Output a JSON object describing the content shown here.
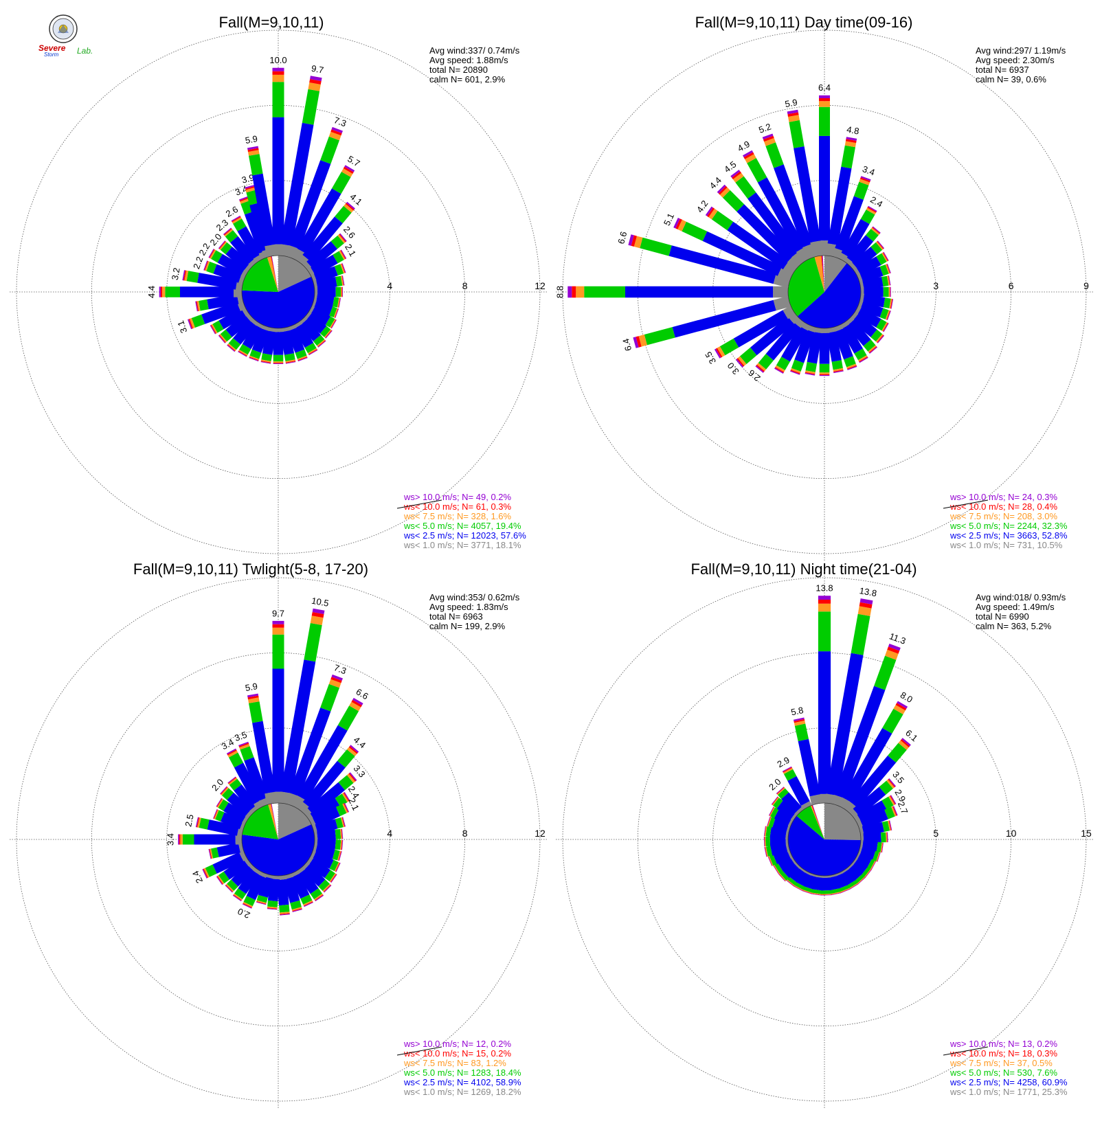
{
  "colors": {
    "gt10": "#9400d3",
    "lt10": "#ff0000",
    "lt7_5": "#ff9922",
    "lt5": "#00cc00",
    "lt2_5": "#0000ee",
    "lt1": "#888888"
  },
  "logo": {
    "text_severe": "Severe",
    "text_storm": "Storm",
    "text_lab": "Lab."
  },
  "chart_data": [
    {
      "type": "polar-bar",
      "title": "Fall(M=9,10,11)",
      "rlim": [
        0,
        12
      ],
      "rticks": [
        "4",
        "8",
        "12"
      ],
      "stats": [
        "Avg wind:337/ 0.74m/s",
        "Avg speed: 1.88m/s",
        "total N=      20890",
        "calm N=    601,   2.9%"
      ],
      "legend": [
        "ws> 10.0 m/s; N=    49,  0.2%",
        "ws< 10.0 m/s; N=    61,  0.3%",
        "ws<  7.5 m/s; N=   328,  1.6%",
        "ws<  5.0 m/s; N=  4057, 19.4%",
        "ws<  2.5 m/s; N= 12023, 57.6%",
        "ws<  1.0 m/s; N=  3771, 18.1%"
      ],
      "pie": {
        "lt1": 18.1,
        "lt2_5": 57.6,
        "lt5": 19.4,
        "lt7_5": 1.6,
        "lt10": 0.3,
        "gt10": 0.2
      },
      "sectors": [
        {
          "d": 0,
          "total": 10.0,
          "label": "10.0"
        },
        {
          "d": 10,
          "total": 9.7,
          "label": "9.7"
        },
        {
          "d": 20,
          "total": 7.3,
          "label": "7.3"
        },
        {
          "d": 30,
          "total": 5.7,
          "label": "5.7"
        },
        {
          "d": 40,
          "total": 4.1,
          "label": "4.1"
        },
        {
          "d": 50,
          "total": 2.6,
          "label": "2.6"
        },
        {
          "d": 60,
          "total": 2.1,
          "label": "2.1"
        },
        {
          "d": 70,
          "total": 1.8
        },
        {
          "d": 80,
          "total": 1.6
        },
        {
          "d": 90,
          "total": 1.5
        },
        {
          "d": 100,
          "total": 1.4
        },
        {
          "d": 110,
          "total": 1.4
        },
        {
          "d": 120,
          "total": 1.5
        },
        {
          "d": 130,
          "total": 1.6
        },
        {
          "d": 140,
          "total": 1.7
        },
        {
          "d": 150,
          "total": 1.8
        },
        {
          "d": 160,
          "total": 1.9
        },
        {
          "d": 170,
          "total": 1.9
        },
        {
          "d": 180,
          "total": 1.9
        },
        {
          "d": 190,
          "total": 1.9
        },
        {
          "d": 200,
          "total": 1.9
        },
        {
          "d": 210,
          "total": 1.9
        },
        {
          "d": 220,
          "total": 2.0
        },
        {
          "d": 230,
          "total": 2.0
        },
        {
          "d": 240,
          "total": 2.1
        },
        {
          "d": 250,
          "total": 3.1,
          "label": "3.1"
        },
        {
          "d": 260,
          "total": 2.5
        },
        {
          "d": 270,
          "total": 4.4,
          "label": "4.4"
        },
        {
          "d": 280,
          "total": 3.2,
          "label": "3.2"
        },
        {
          "d": 290,
          "total": 2.2,
          "label": "2.2"
        },
        {
          "d": 300,
          "total": 2.2,
          "label": "2.2"
        },
        {
          "d": 310,
          "total": 2.0,
          "label": "2.0"
        },
        {
          "d": 320,
          "total": 2.3,
          "label": "2.3"
        },
        {
          "d": 330,
          "total": 2.6,
          "label": "2.6"
        },
        {
          "d": 340,
          "total": 3.4,
          "label": "3.4"
        },
        {
          "d": 345,
          "total": 3.9,
          "label": "3.9"
        },
        {
          "d": 350,
          "total": 5.9,
          "label": "5.9"
        }
      ]
    },
    {
      "type": "polar-bar",
      "title": "Fall(M=9,10,11) Day time(09-16)",
      "rlim": [
        0,
        9
      ],
      "rticks": [
        "3",
        "6",
        "9"
      ],
      "stats": [
        "Avg wind:297/ 1.19m/s",
        "Avg speed: 2.30m/s",
        "total N=       6937",
        "calm N=     39,   0.6%"
      ],
      "legend": [
        "ws> 10.0 m/s; N=    24,  0.3%",
        "ws< 10.0 m/s; N=    28,  0.4%",
        "ws<  7.5 m/s; N=   208,  3.0%",
        "ws<  5.0 m/s; N=  2244, 32.3%",
        "ws<  2.5 m/s; N=  3663, 52.8%",
        "ws<  1.0 m/s; N=   731, 10.5%"
      ],
      "pie": {
        "lt1": 10.5,
        "lt2_5": 52.8,
        "lt5": 32.3,
        "lt7_5": 3.0,
        "lt10": 0.4,
        "gt10": 0.3
      },
      "sectors": [
        {
          "d": 0,
          "total": 6.4,
          "label": "6.4"
        },
        {
          "d": 10,
          "total": 4.8,
          "label": "4.8"
        },
        {
          "d": 20,
          "total": 3.4,
          "label": "3.4"
        },
        {
          "d": 30,
          "total": 2.4,
          "label": "2.4"
        },
        {
          "d": 40,
          "total": 1.8
        },
        {
          "d": 50,
          "total": 1.5
        },
        {
          "d": 60,
          "total": 1.4
        },
        {
          "d": 70,
          "total": 1.3
        },
        {
          "d": 80,
          "total": 1.2
        },
        {
          "d": 90,
          "total": 1.2
        },
        {
          "d": 100,
          "total": 1.3
        },
        {
          "d": 110,
          "total": 1.3
        },
        {
          "d": 120,
          "total": 1.4
        },
        {
          "d": 130,
          "total": 1.5
        },
        {
          "d": 140,
          "total": 1.6
        },
        {
          "d": 150,
          "total": 1.7
        },
        {
          "d": 160,
          "total": 1.8
        },
        {
          "d": 170,
          "total": 1.8
        },
        {
          "d": 180,
          "total": 1.9
        },
        {
          "d": 190,
          "total": 1.9
        },
        {
          "d": 200,
          "total": 2.0
        },
        {
          "d": 210,
          "total": 2.2
        },
        {
          "d": 220,
          "total": 2.6,
          "label": "2.6"
        },
        {
          "d": 230,
          "total": 3.0,
          "label": "3.0"
        },
        {
          "d": 240,
          "total": 3.5,
          "label": "3.5"
        },
        {
          "d": 255,
          "total": 6.4,
          "label": "6.4"
        },
        {
          "d": 270,
          "total": 8.8,
          "label": "8.8"
        },
        {
          "d": 285,
          "total": 6.6,
          "label": "6.6"
        },
        {
          "d": 295,
          "total": 5.1,
          "label": "5.1"
        },
        {
          "d": 305,
          "total": 4.2,
          "label": "4.2"
        },
        {
          "d": 315,
          "total": 4.4,
          "label": "4.4"
        },
        {
          "d": 323,
          "total": 4.5,
          "label": "4.5"
        },
        {
          "d": 331,
          "total": 4.9,
          "label": "4.9"
        },
        {
          "d": 340,
          "total": 5.2,
          "label": "5.2"
        },
        {
          "d": 350,
          "total": 5.9,
          "label": "5.9"
        }
      ]
    },
    {
      "type": "polar-bar",
      "title": "Fall(M=9,10,11) Twlight(5-8, 17-20)",
      "rlim": [
        0,
        12
      ],
      "rticks": [
        "4",
        "8",
        "12"
      ],
      "stats": [
        "Avg wind:353/ 0.62m/s",
        "Avg speed: 1.83m/s",
        "total N=       6963",
        "calm N=    199,   2.9%"
      ],
      "legend": [
        "ws> 10.0 m/s; N=    12,  0.2%",
        "ws< 10.0 m/s; N=    15,  0.2%",
        "ws<  7.5 m/s; N=    83,  1.2%",
        "ws<  5.0 m/s; N=  1283, 18.4%",
        "ws<  2.5 m/s; N=  4102, 58.9%",
        "ws<  1.0 m/s; N=  1269, 18.2%"
      ],
      "pie": {
        "lt1": 18.2,
        "lt2_5": 58.9,
        "lt5": 18.4,
        "lt7_5": 1.2,
        "lt10": 0.2,
        "gt10": 0.2
      },
      "sectors": [
        {
          "d": 0,
          "total": 9.7,
          "label": "9.7"
        },
        {
          "d": 10,
          "total": 10.5,
          "label": "10.5"
        },
        {
          "d": 20,
          "total": 7.3,
          "label": "7.3"
        },
        {
          "d": 30,
          "total": 6.6,
          "label": "6.6"
        },
        {
          "d": 40,
          "total": 4.4,
          "label": "4.4"
        },
        {
          "d": 50,
          "total": 3.3,
          "label": "3.3"
        },
        {
          "d": 58,
          "total": 2.4,
          "label": "2.4"
        },
        {
          "d": 65,
          "total": 2.1,
          "label": "2.1"
        },
        {
          "d": 75,
          "total": 1.7
        },
        {
          "d": 85,
          "total": 1.5
        },
        {
          "d": 95,
          "total": 1.5
        },
        {
          "d": 105,
          "total": 1.5
        },
        {
          "d": 115,
          "total": 1.6
        },
        {
          "d": 125,
          "total": 1.7
        },
        {
          "d": 135,
          "total": 1.8
        },
        {
          "d": 145,
          "total": 1.9
        },
        {
          "d": 155,
          "total": 1.9
        },
        {
          "d": 165,
          "total": 2.0
        },
        {
          "d": 175,
          "total": 2.1
        },
        {
          "d": 185,
          "total": 1.8
        },
        {
          "d": 195,
          "total": 1.6
        },
        {
          "d": 205,
          "total": 2.0,
          "label": "2.0"
        },
        {
          "d": 215,
          "total": 1.9
        },
        {
          "d": 225,
          "total": 1.8
        },
        {
          "d": 235,
          "total": 1.9
        },
        {
          "d": 245,
          "total": 2.4,
          "label": "2.4"
        },
        {
          "d": 258,
          "total": 1.8
        },
        {
          "d": 270,
          "total": 3.4,
          "label": "3.4"
        },
        {
          "d": 282,
          "total": 2.5,
          "label": "2.5"
        },
        {
          "d": 292,
          "total": 1.7
        },
        {
          "d": 302,
          "total": 1.8
        },
        {
          "d": 312,
          "total": 2.0,
          "label": "2.0"
        },
        {
          "d": 322,
          "total": 2.1
        },
        {
          "d": 332,
          "total": 3.4,
          "label": "3.4"
        },
        {
          "d": 340,
          "total": 3.5,
          "label": "3.5"
        },
        {
          "d": 350,
          "total": 5.9,
          "label": "5.9"
        }
      ]
    },
    {
      "type": "polar-bar",
      "title": "Fall(M=9,10,11) Night time(21-04)",
      "rlim": [
        0,
        15
      ],
      "rticks": [
        "5",
        "10",
        "15"
      ],
      "stats": [
        "Avg wind:018/ 0.93m/s",
        "Avg speed: 1.49m/s",
        "total N=       6990",
        "calm N=    363,   5.2%"
      ],
      "legend": [
        "ws> 10.0 m/s; N=    13,  0.2%",
        "ws< 10.0 m/s; N=    18,  0.3%",
        "ws<  7.5 m/s; N=    37,  0.5%",
        "ws<  5.0 m/s; N=   530,  7.6%",
        "ws<  2.5 m/s; N=  4258, 60.9%",
        "ws<  1.0 m/s; N=  1771, 25.3%"
      ],
      "pie": {
        "lt1": 25.3,
        "lt2_5": 60.9,
        "lt5": 7.6,
        "lt7_5": 0.5,
        "lt10": 0.3,
        "gt10": 0.2
      },
      "sectors": [
        {
          "d": 0,
          "total": 13.8,
          "label": "13.8"
        },
        {
          "d": 10,
          "total": 13.8,
          "label": "13.8"
        },
        {
          "d": 20,
          "total": 11.3,
          "label": "11.3"
        },
        {
          "d": 30,
          "total": 8.0,
          "label": "8.0"
        },
        {
          "d": 40,
          "total": 6.1,
          "label": "6.1"
        },
        {
          "d": 50,
          "total": 3.5,
          "label": "3.5"
        },
        {
          "d": 60,
          "total": 2.9,
          "label": "2.9"
        },
        {
          "d": 68,
          "total": 2.7,
          "label": "2.7"
        },
        {
          "d": 78,
          "total": 2.1
        },
        {
          "d": 88,
          "total": 1.8
        },
        {
          "d": 98,
          "total": 1.5
        },
        {
          "d": 108,
          "total": 1.4
        },
        {
          "d": 118,
          "total": 1.3
        },
        {
          "d": 128,
          "total": 1.3
        },
        {
          "d": 138,
          "total": 1.3
        },
        {
          "d": 148,
          "total": 1.3
        },
        {
          "d": 158,
          "total": 1.3
        },
        {
          "d": 168,
          "total": 1.3
        },
        {
          "d": 178,
          "total": 1.3
        },
        {
          "d": 188,
          "total": 1.3
        },
        {
          "d": 198,
          "total": 1.3
        },
        {
          "d": 208,
          "total": 1.3
        },
        {
          "d": 218,
          "total": 1.3
        },
        {
          "d": 228,
          "total": 1.4
        },
        {
          "d": 238,
          "total": 1.4
        },
        {
          "d": 248,
          "total": 1.5
        },
        {
          "d": 258,
          "total": 1.6
        },
        {
          "d": 268,
          "total": 1.6
        },
        {
          "d": 278,
          "total": 1.6
        },
        {
          "d": 288,
          "total": 1.5
        },
        {
          "d": 298,
          "total": 1.6
        },
        {
          "d": 308,
          "total": 1.8
        },
        {
          "d": 318,
          "total": 2.0,
          "label": "2.0"
        },
        {
          "d": 332,
          "total": 2.9,
          "label": "2.9"
        },
        {
          "d": 348,
          "total": 5.8,
          "label": "5.8"
        }
      ]
    }
  ]
}
